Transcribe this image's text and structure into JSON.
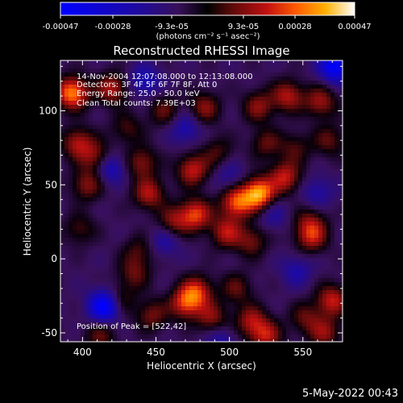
{
  "colorbar": {
    "ticks": [
      "-0.00047",
      "-0.00028",
      "-9.3e-05",
      "9.3e-05",
      "0.00028",
      "0.00047"
    ],
    "unit_label": "(photons cm⁻² s⁻¹ asec⁻²)",
    "vmin": -0.00047,
    "vmax": 0.00047
  },
  "chart_data": {
    "type": "heatmap",
    "title": "Reconstructed RHESSI Image",
    "xlabel": "Heliocentric X (arcsec)",
    "ylabel": "Heliocentric Y (arcsec)",
    "xlim": [
      385,
      577
    ],
    "ylim": [
      -56,
      134
    ],
    "x_ticks": [
      400,
      450,
      500,
      550
    ],
    "y_ticks": [
      -50,
      0,
      50,
      100
    ],
    "annotations": [
      "14-Nov-2004 12:07:08.000 to 12:13:08.000",
      "Detectors: 3F 4F 5F 6F 7F 8F, Att 0",
      "Energy Range: 25.0 - 50.0 keV",
      "Clean    Total counts: 7.39E+03"
    ],
    "peak_label": "Position of Peak = [522,42]",
    "peak": [
      522,
      42
    ],
    "hot_spots": [
      {
        "x": 520,
        "y": 44,
        "v": 1.0
      },
      {
        "x": 505,
        "y": 38,
        "v": 0.75
      },
      {
        "x": 538,
        "y": 55,
        "v": 0.6
      },
      {
        "x": 477,
        "y": 30,
        "v": 0.7
      },
      {
        "x": 462,
        "y": 25,
        "v": 0.45
      },
      {
        "x": 475,
        "y": 60,
        "v": 0.6
      },
      {
        "x": 445,
        "y": 44,
        "v": 0.55
      },
      {
        "x": 440,
        "y": 65,
        "v": 0.45
      },
      {
        "x": 498,
        "y": 18,
        "v": 0.55
      },
      {
        "x": 515,
        "y": 12,
        "v": 0.4
      },
      {
        "x": 410,
        "y": 68,
        "v": 0.5
      },
      {
        "x": 403,
        "y": 50,
        "v": 0.45
      },
      {
        "x": 397,
        "y": 78,
        "v": 0.55
      },
      {
        "x": 393,
        "y": 112,
        "v": 0.9
      },
      {
        "x": 420,
        "y": 115,
        "v": 0.55
      },
      {
        "x": 455,
        "y": 100,
        "v": 0.35
      },
      {
        "x": 483,
        "y": 102,
        "v": 0.45
      },
      {
        "x": 520,
        "y": 103,
        "v": 0.45
      },
      {
        "x": 540,
        "y": 110,
        "v": 0.55
      },
      {
        "x": 562,
        "y": 106,
        "v": 0.5
      },
      {
        "x": 568,
        "y": 80,
        "v": 0.35
      },
      {
        "x": 556,
        "y": 15,
        "v": 0.55
      },
      {
        "x": 555,
        "y": 25,
        "v": 0.35
      },
      {
        "x": 435,
        "y": -10,
        "v": 0.35
      },
      {
        "x": 478,
        "y": -22,
        "v": 0.6
      },
      {
        "x": 470,
        "y": -30,
        "v": 0.65
      },
      {
        "x": 488,
        "y": -40,
        "v": 0.45
      },
      {
        "x": 505,
        "y": -20,
        "v": 0.35
      },
      {
        "x": 515,
        "y": -42,
        "v": 0.5
      },
      {
        "x": 525,
        "y": -52,
        "v": 0.55
      },
      {
        "x": 570,
        "y": -28,
        "v": 0.6
      },
      {
        "x": 565,
        "y": -50,
        "v": 0.45
      },
      {
        "x": 552,
        "y": -40,
        "v": 0.35
      },
      {
        "x": 447,
        "y": -38,
        "v": 0.4
      },
      {
        "x": 425,
        "y": -28,
        "v": 0.35
      },
      {
        "x": 412,
        "y": -52,
        "v": 0.35
      },
      {
        "x": 492,
        "y": 72,
        "v": 0.3
      },
      {
        "x": 430,
        "y": 88,
        "v": 0.3
      },
      {
        "x": 545,
        "y": 75,
        "v": 0.3
      },
      {
        "x": 525,
        "y": 78,
        "v": 0.35
      },
      {
        "x": 398,
        "y": 20,
        "v": 0.3
      },
      {
        "x": 438,
        "y": 5,
        "v": 0.3
      }
    ],
    "cold_spots": [
      {
        "x": 415,
        "y": -32,
        "v": -0.9
      },
      {
        "x": 418,
        "y": 62,
        "v": -0.5
      },
      {
        "x": 572,
        "y": 130,
        "v": -0.8
      },
      {
        "x": 442,
        "y": 120,
        "v": -0.4
      },
      {
        "x": 470,
        "y": 88,
        "v": -0.35
      },
      {
        "x": 456,
        "y": 12,
        "v": -0.3
      },
      {
        "x": 546,
        "y": -8,
        "v": -0.3
      },
      {
        "x": 500,
        "y": 56,
        "v": -0.25
      },
      {
        "x": 530,
        "y": 30,
        "v": -0.25
      },
      {
        "x": 494,
        "y": -55,
        "v": -0.3
      },
      {
        "x": 560,
        "y": 45,
        "v": -0.3
      }
    ]
  },
  "footer": {
    "date": "5-May-2022 00:43"
  }
}
